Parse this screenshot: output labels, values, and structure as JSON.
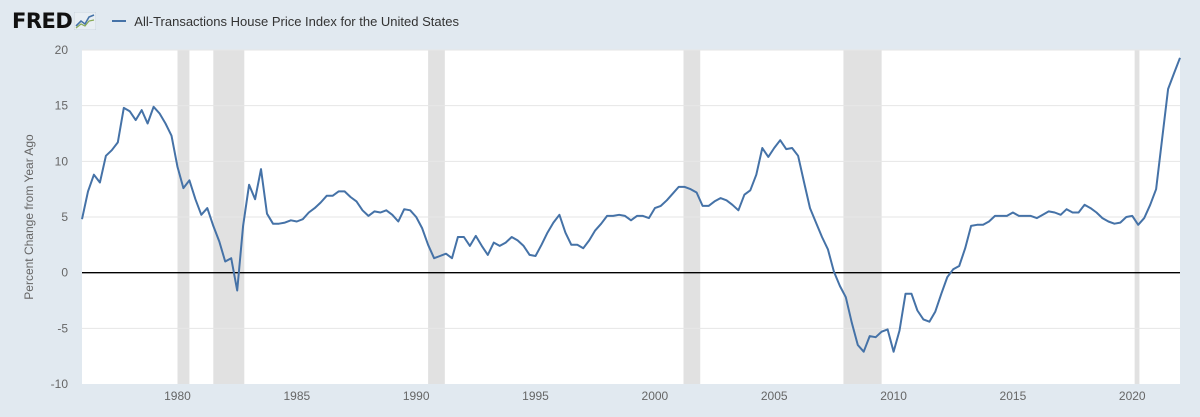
{
  "brand": {
    "name": "FRED",
    "logo_icon": "fred-chart-mark-icon"
  },
  "colors": {
    "series": "#4572a7",
    "recession": "#e1e1e1",
    "zero_line": "#000000",
    "background": "#e1e9f0",
    "plot": "#ffffff"
  },
  "chart_data": {
    "type": "line",
    "title": "",
    "xlabel": "",
    "ylabel": "Percent Change from Year Ago",
    "ylim": [
      -10,
      20
    ],
    "xlim": [
      1976.0,
      2022.0
    ],
    "yticks": [
      -10,
      -5,
      0,
      5,
      10,
      15,
      20
    ],
    "xticks": [
      1980,
      1985,
      1990,
      1995,
      2000,
      2005,
      2010,
      2015,
      2020
    ],
    "grid": "horizontal",
    "legend": "top-left",
    "reference_line": 0,
    "recessions": [
      [
        1980.0,
        1980.5
      ],
      [
        1981.5,
        1982.8
      ],
      [
        1990.5,
        1991.2
      ],
      [
        2001.2,
        2001.9
      ],
      [
        2007.9,
        2009.5
      ],
      [
        2020.1,
        2020.3
      ]
    ],
    "series": [
      {
        "name": "All-Transactions House Price Index for the United States",
        "x": [
          1976.0,
          1976.25,
          1976.5,
          1976.75,
          1977.0,
          1977.25,
          1977.5,
          1977.75,
          1978.0,
          1978.25,
          1978.5,
          1978.75,
          1979.0,
          1979.25,
          1979.5,
          1979.75,
          1980.0,
          1980.25,
          1980.5,
          1980.75,
          1981.0,
          1981.25,
          1981.5,
          1981.75,
          1982.0,
          1982.25,
          1982.5,
          1982.75,
          1983.0,
          1983.25,
          1983.5,
          1983.75,
          1984.0,
          1984.25,
          1984.5,
          1984.75,
          1985.0,
          1985.25,
          1985.5,
          1985.75,
          1986.0,
          1986.25,
          1986.5,
          1986.75,
          1987.0,
          1987.25,
          1987.5,
          1987.75,
          1988.0,
          1988.25,
          1988.5,
          1988.75,
          1989.0,
          1989.25,
          1989.5,
          1989.75,
          1990.0,
          1990.25,
          1990.5,
          1990.75,
          1991.0,
          1991.25,
          1991.5,
          1991.75,
          1992.0,
          1992.25,
          1992.5,
          1992.75,
          1993.0,
          1993.25,
          1993.5,
          1993.75,
          1994.0,
          1994.25,
          1994.5,
          1994.75,
          1995.0,
          1995.25,
          1995.5,
          1995.75,
          1996.0,
          1996.25,
          1996.5,
          1996.75,
          1997.0,
          1997.25,
          1997.5,
          1997.75,
          1998.0,
          1998.25,
          1998.5,
          1998.75,
          1999.0,
          1999.25,
          1999.5,
          1999.75,
          2000.0,
          2000.25,
          2000.5,
          2000.75,
          2001.0,
          2001.25,
          2001.5,
          2001.75,
          2002.0,
          2002.25,
          2002.5,
          2002.75,
          2003.0,
          2003.25,
          2003.5,
          2003.75,
          2004.0,
          2004.25,
          2004.5,
          2004.75,
          2005.0,
          2005.25,
          2005.5,
          2005.75,
          2006.0,
          2006.25,
          2006.5,
          2006.75,
          2007.0,
          2007.25,
          2007.5,
          2007.75,
          2008.0,
          2008.25,
          2008.5,
          2008.75,
          2009.0,
          2009.25,
          2009.5,
          2009.75,
          2010.0,
          2010.25,
          2010.5,
          2010.75,
          2011.0,
          2011.25,
          2011.5,
          2011.75,
          2012.0,
          2012.25,
          2012.5,
          2012.75,
          2013.0,
          2013.25,
          2013.5,
          2013.75,
          2014.0,
          2014.25,
          2014.5,
          2014.75,
          2015.0,
          2015.25,
          2015.5,
          2015.75,
          2016.0,
          2016.25,
          2016.5,
          2016.75,
          2017.0,
          2017.25,
          2017.5,
          2017.75,
          2018.0,
          2018.25,
          2018.5,
          2018.75,
          2019.0,
          2019.25,
          2019.5,
          2019.75,
          2020.0,
          2020.25,
          2020.5,
          2020.75,
          2021.0,
          2021.25,
          2021.5,
          2021.75,
          2022.0
        ],
        "values": [
          4.8,
          7.3,
          8.8,
          8.1,
          10.5,
          11.0,
          11.7,
          14.8,
          14.5,
          13.7,
          14.6,
          13.4,
          14.9,
          14.3,
          13.4,
          12.3,
          9.5,
          7.6,
          8.3,
          6.6,
          5.2,
          5.8,
          4.2,
          2.8,
          1.0,
          1.3,
          -1.6,
          4.2,
          7.9,
          6.6,
          9.3,
          5.3,
          4.4,
          4.4,
          4.5,
          4.7,
          4.6,
          4.8,
          5.4,
          5.8,
          6.3,
          6.9,
          6.9,
          7.3,
          7.3,
          6.8,
          6.4,
          5.6,
          5.1,
          5.5,
          5.4,
          5.6,
          5.2,
          4.6,
          5.7,
          5.6,
          5.0,
          4.0,
          2.5,
          1.3,
          1.5,
          1.7,
          1.3,
          3.2,
          3.2,
          2.4,
          3.3,
          2.4,
          1.6,
          2.7,
          2.4,
          2.7,
          3.2,
          2.9,
          2.4,
          1.6,
          1.5,
          2.5,
          3.6,
          4.5,
          5.2,
          3.6,
          2.5,
          2.5,
          2.2,
          2.9,
          3.8,
          4.4,
          5.1,
          5.1,
          5.2,
          5.1,
          4.7,
          5.1,
          5.1,
          4.9,
          5.8,
          6.0,
          6.5,
          7.1,
          7.7,
          7.7,
          7.5,
          7.2,
          6.0,
          6.0,
          6.4,
          6.7,
          6.5,
          6.1,
          5.6,
          7.0,
          7.4,
          8.8,
          11.2,
          10.4,
          11.2,
          11.9,
          11.1,
          11.2,
          10.5,
          8.1,
          5.8,
          4.5,
          3.2,
          2.1,
          0.1,
          -1.2,
          -2.2,
          -4.5,
          -6.5,
          -7.1,
          -5.7,
          -5.8,
          -5.3,
          -5.1,
          -7.1,
          -5.2,
          -1.9,
          -1.9,
          -3.4,
          -4.2,
          -4.4,
          -3.5,
          -1.9,
          -0.4,
          0.3,
          0.6,
          2.2,
          4.2,
          4.3,
          4.3,
          4.6,
          5.1,
          5.1,
          5.1,
          5.4,
          5.1,
          5.1,
          5.1,
          4.9,
          5.2,
          5.5,
          5.4,
          5.2,
          5.7,
          5.4,
          5.4,
          6.1,
          5.8,
          5.4,
          4.9,
          4.6,
          4.4,
          4.5,
          5.0,
          5.1,
          4.3,
          4.9,
          6.1,
          7.5,
          12.0,
          16.5,
          17.9,
          19.3
        ]
      }
    ]
  }
}
